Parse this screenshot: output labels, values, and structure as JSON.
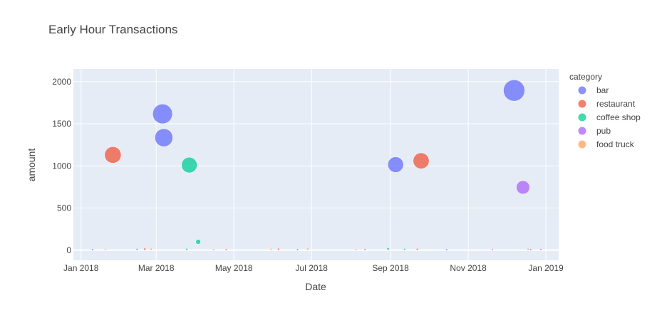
{
  "chart_data": {
    "type": "scatter",
    "title": "Early Hour Transactions",
    "xlabel": "Date",
    "ylabel": "amount",
    "x_range": [
      "2017-12-26",
      "2019-01-11"
    ],
    "ylim": [
      -120,
      2150
    ],
    "x_ticks": [
      {
        "date": "2018-01-01",
        "label": "Jan 2018"
      },
      {
        "date": "2018-03-01",
        "label": "Mar 2018"
      },
      {
        "date": "2018-05-01",
        "label": "May 2018"
      },
      {
        "date": "2018-07-01",
        "label": "Jul 2018"
      },
      {
        "date": "2018-09-01",
        "label": "Sep 2018"
      },
      {
        "date": "2018-11-01",
        "label": "Nov 2018"
      },
      {
        "date": "2019-01-01",
        "label": "Jan 2019"
      }
    ],
    "y_ticks": [
      0,
      500,
      1000,
      1500,
      2000
    ],
    "grid": true,
    "legend": {
      "title": "category",
      "placement": "right"
    },
    "size_encodes": "amount",
    "series": [
      {
        "name": "bar",
        "color": "#636efa",
        "points": [
          {
            "x": "2018-03-06",
            "y": 1617
          },
          {
            "x": "2018-03-07",
            "y": 1335
          },
          {
            "x": "2018-09-05",
            "y": 1015
          },
          {
            "x": "2018-12-07",
            "y": 1895
          },
          {
            "x": "2018-01-10",
            "y": 6
          },
          {
            "x": "2018-02-14",
            "y": 9
          },
          {
            "x": "2018-06-20",
            "y": 5
          },
          {
            "x": "2018-10-15",
            "y": 4
          },
          {
            "x": "2018-12-20",
            "y": 7
          }
        ]
      },
      {
        "name": "restaurant",
        "color": "#ef553b",
        "points": [
          {
            "x": "2018-01-26",
            "y": 1130
          },
          {
            "x": "2018-09-25",
            "y": 1060
          },
          {
            "x": "2018-02-20",
            "y": 12
          },
          {
            "x": "2018-04-25",
            "y": 6
          },
          {
            "x": "2018-06-05",
            "y": 11
          },
          {
            "x": "2018-08-12",
            "y": 8
          },
          {
            "x": "2018-09-22",
            "y": 10
          }
        ]
      },
      {
        "name": "coffee shop",
        "color": "#00cc96",
        "points": [
          {
            "x": "2018-03-27",
            "y": 1010
          },
          {
            "x": "2018-04-03",
            "y": 99
          },
          {
            "x": "2018-03-25",
            "y": 10
          },
          {
            "x": "2018-08-30",
            "y": 15
          },
          {
            "x": "2018-09-12",
            "y": 9
          }
        ]
      },
      {
        "name": "pub",
        "color": "#ab63fa",
        "points": [
          {
            "x": "2018-12-14",
            "y": 745
          },
          {
            "x": "2018-11-20",
            "y": 6
          },
          {
            "x": "2018-12-28",
            "y": 8
          }
        ]
      },
      {
        "name": "food truck",
        "color": "#ffa15a",
        "points": [
          {
            "x": "2018-01-20",
            "y": 8
          },
          {
            "x": "2018-02-25",
            "y": 11
          },
          {
            "x": "2018-04-15",
            "y": 6
          },
          {
            "x": "2018-05-30",
            "y": 9
          },
          {
            "x": "2018-06-28",
            "y": 12
          },
          {
            "x": "2018-08-05",
            "y": 7
          },
          {
            "x": "2018-12-18",
            "y": 10
          }
        ]
      }
    ]
  }
}
